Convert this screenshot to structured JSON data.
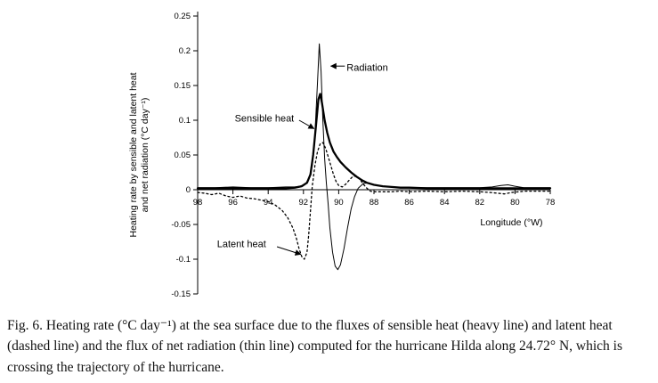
{
  "figure": {
    "caption": "Fig. 6. Heating rate (°C day⁻¹) at the sea surface due to the fluxes of sensible heat (heavy line) and latent heat (dashed line) and the flux of net radiation (thin line) computed for the hurricane Hilda along 24.72° N, which is crossing the trajectory of the hurricane."
  },
  "chart_data": {
    "type": "line",
    "title": "",
    "xlabel": "Longitude (°W)",
    "ylabel": "Heating rate by sensible and latent heat and net radiation (°C day⁻¹)",
    "ylabel_lines": [
      "Heating rate by sensible and latent heat",
      "and net radiation (°C day⁻¹)"
    ],
    "xlim": [
      98,
      78
    ],
    "ylim": [
      -0.15,
      0.25
    ],
    "x_ticks": [
      98,
      96,
      94,
      92,
      90,
      88,
      86,
      84,
      82,
      80,
      78
    ],
    "y_ticks": [
      0.25,
      0.2,
      0.15,
      0.1,
      0.05,
      0,
      -0.05,
      -0.1,
      -0.15
    ],
    "grid": false,
    "legend_position": "none",
    "annotations": [
      {
        "text": "Radiation",
        "text_pos": [
          89.55,
          0.171
        ],
        "arrow_from": [
          89.65,
          0.178
        ],
        "arrow_to": [
          90.45,
          0.178
        ]
      },
      {
        "text": "Sensible heat",
        "text_pos": [
          95.9,
          0.098
        ],
        "arrow_from": [
          92.25,
          0.1
        ],
        "arrow_to": [
          91.4,
          0.088
        ]
      },
      {
        "text": "Latent heat",
        "text_pos": [
          96.9,
          -0.083
        ],
        "arrow_from": [
          93.5,
          -0.082
        ],
        "arrow_to": [
          92.15,
          -0.093
        ]
      }
    ],
    "series": [
      {
        "name": "Net radiation",
        "style": "thin",
        "points": [
          [
            98,
            0.003
          ],
          [
            97,
            0.003
          ],
          [
            96,
            0.004
          ],
          [
            95,
            0.003
          ],
          [
            94,
            0.003
          ],
          [
            93,
            0.004
          ],
          [
            92.5,
            0.004
          ],
          [
            92.2,
            0.005
          ],
          [
            91.9,
            0.008
          ],
          [
            91.7,
            0.015
          ],
          [
            91.5,
            0.035
          ],
          [
            91.35,
            0.08
          ],
          [
            91.2,
            0.155
          ],
          [
            91.1,
            0.21
          ],
          [
            91.0,
            0.17
          ],
          [
            90.9,
            0.1
          ],
          [
            90.8,
            0.045
          ],
          [
            90.7,
            0.01
          ],
          [
            90.6,
            -0.02
          ],
          [
            90.5,
            -0.055
          ],
          [
            90.35,
            -0.09
          ],
          [
            90.2,
            -0.11
          ],
          [
            90.05,
            -0.115
          ],
          [
            89.9,
            -0.108
          ],
          [
            89.7,
            -0.085
          ],
          [
            89.5,
            -0.055
          ],
          [
            89.3,
            -0.028
          ],
          [
            89.1,
            -0.01
          ],
          [
            88.9,
            0.002
          ],
          [
            88.6,
            0.009
          ],
          [
            88.3,
            0.01
          ],
          [
            88.0,
            0.007
          ],
          [
            87.5,
            0.005
          ],
          [
            87.0,
            0.004
          ],
          [
            86.5,
            0.003
          ],
          [
            86,
            0.003
          ],
          [
            85,
            0.003
          ],
          [
            84,
            0.003
          ],
          [
            83,
            0.003
          ],
          [
            82,
            0.003
          ],
          [
            81.3,
            0.004
          ],
          [
            80.8,
            0.006
          ],
          [
            80.4,
            0.007
          ],
          [
            80.0,
            0.005
          ],
          [
            79.5,
            0.003
          ],
          [
            79,
            0.003
          ],
          [
            78,
            0.003
          ]
        ]
      },
      {
        "name": "Latent heat",
        "style": "dashed",
        "points": [
          [
            98,
            -0.004
          ],
          [
            97.6,
            -0.005
          ],
          [
            97.2,
            -0.007
          ],
          [
            96.8,
            -0.005
          ],
          [
            96.4,
            -0.009
          ],
          [
            96.0,
            -0.011
          ],
          [
            95.6,
            -0.009
          ],
          [
            95.2,
            -0.012
          ],
          [
            94.8,
            -0.013
          ],
          [
            94.4,
            -0.015
          ],
          [
            94.0,
            -0.017
          ],
          [
            93.6,
            -0.022
          ],
          [
            93.2,
            -0.03
          ],
          [
            92.9,
            -0.04
          ],
          [
            92.6,
            -0.055
          ],
          [
            92.4,
            -0.07
          ],
          [
            92.25,
            -0.085
          ],
          [
            92.1,
            -0.096
          ],
          [
            91.95,
            -0.1
          ],
          [
            91.8,
            -0.09
          ],
          [
            91.7,
            -0.065
          ],
          [
            91.6,
            -0.03
          ],
          [
            91.5,
            0.005
          ],
          [
            91.35,
            0.035
          ],
          [
            91.2,
            0.055
          ],
          [
            91.05,
            0.066
          ],
          [
            90.9,
            0.068
          ],
          [
            90.75,
            0.06
          ],
          [
            90.6,
            0.048
          ],
          [
            90.45,
            0.035
          ],
          [
            90.3,
            0.022
          ],
          [
            90.15,
            0.012
          ],
          [
            90.0,
            0.006
          ],
          [
            89.8,
            0.004
          ],
          [
            89.6,
            0.008
          ],
          [
            89.4,
            0.014
          ],
          [
            89.2,
            0.019
          ],
          [
            89.0,
            0.02
          ],
          [
            88.8,
            0.015
          ],
          [
            88.6,
            0.008
          ],
          [
            88.4,
            0.002
          ],
          [
            88.2,
            -0.002
          ],
          [
            88.0,
            -0.003
          ],
          [
            87.5,
            -0.003
          ],
          [
            87.0,
            -0.003
          ],
          [
            86.5,
            -0.002
          ],
          [
            86,
            -0.003
          ],
          [
            85,
            -0.002
          ],
          [
            84,
            -0.003
          ],
          [
            83,
            -0.002
          ],
          [
            82,
            -0.003
          ],
          [
            81.4,
            -0.004
          ],
          [
            81.0,
            -0.005
          ],
          [
            80.6,
            -0.006
          ],
          [
            80.2,
            -0.004
          ],
          [
            79.8,
            -0.003
          ],
          [
            79.4,
            -0.002
          ],
          [
            79,
            -0.002
          ],
          [
            78,
            -0.002
          ]
        ]
      },
      {
        "name": "Sensible heat",
        "style": "heavy",
        "points": [
          [
            98,
            0.002
          ],
          [
            97,
            0.002
          ],
          [
            96,
            0.002
          ],
          [
            95,
            0.002
          ],
          [
            94,
            0.002
          ],
          [
            93,
            0.002
          ],
          [
            92.5,
            0.003
          ],
          [
            92.1,
            0.005
          ],
          [
            91.8,
            0.01
          ],
          [
            91.6,
            0.022
          ],
          [
            91.45,
            0.05
          ],
          [
            91.3,
            0.09
          ],
          [
            91.15,
            0.13
          ],
          [
            91.05,
            0.138
          ],
          [
            90.95,
            0.125
          ],
          [
            90.8,
            0.1
          ],
          [
            90.65,
            0.082
          ],
          [
            90.5,
            0.068
          ],
          [
            90.3,
            0.055
          ],
          [
            90.1,
            0.047
          ],
          [
            89.9,
            0.04
          ],
          [
            89.6,
            0.032
          ],
          [
            89.3,
            0.025
          ],
          [
            89.0,
            0.019
          ],
          [
            88.7,
            0.014
          ],
          [
            88.4,
            0.01
          ],
          [
            88.0,
            0.007
          ],
          [
            87.5,
            0.005
          ],
          [
            87,
            0.004
          ],
          [
            86.5,
            0.003
          ],
          [
            86,
            0.003
          ],
          [
            85,
            0.002
          ],
          [
            84,
            0.002
          ],
          [
            83,
            0.002
          ],
          [
            82,
            0.002
          ],
          [
            81,
            0.002
          ],
          [
            80,
            0.002
          ],
          [
            79,
            0.002
          ],
          [
            78,
            0.002
          ]
        ]
      }
    ]
  }
}
